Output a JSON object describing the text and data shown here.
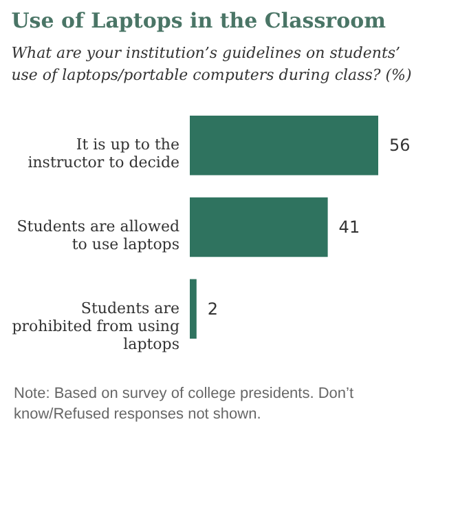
{
  "chart_data": {
    "type": "bar",
    "orientation": "horizontal",
    "title": "Use of Laptops in the Classroom",
    "subtitle": "What are your institution’s guidelines on students’ use of laptops/portable computers during class? (%)",
    "categories": [
      "It is up to the instructor to decide",
      "Students are allowed to use laptops",
      "Students are prohibited from using laptops"
    ],
    "values": [
      56,
      41,
      2
    ],
    "color": "#2f735f",
    "data_labels": true,
    "annotations": [
      "Note: Based on survey of college presidents. Don’t know/Refused responses not shown."
    ]
  }
}
